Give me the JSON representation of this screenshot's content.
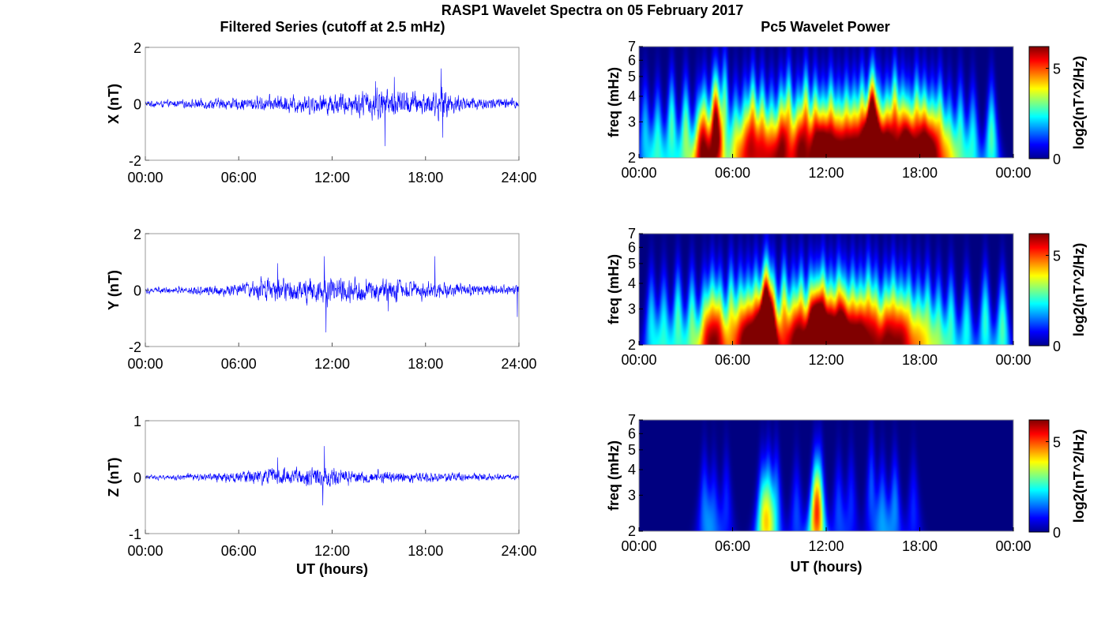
{
  "figure": {
    "title": "RASP1 Wavelet Spectra on 05 February 2017",
    "left_title": "Filtered Series (cutoff at 2.5 mHz)",
    "right_title": "Pc5 Wavelet Power",
    "bottom_xlabel": "UT (hours)"
  },
  "colors": {
    "series_line": "#0000ff",
    "colormap": "jet",
    "spectrogram_background": "#00008f"
  },
  "chart_data": [
    {
      "type": "line",
      "name": "filtered-x",
      "ylabel": "X (nT)",
      "xlabel": "",
      "xlim": [
        0,
        24
      ],
      "ylim": [
        -2,
        2
      ],
      "xticks": [
        0,
        6,
        12,
        18,
        24
      ],
      "xtick_labels": [
        "00:00",
        "06:00",
        "12:00",
        "18:00",
        "24:00"
      ],
      "yticks": [
        -2,
        0,
        2
      ],
      "ytick_labels": [
        "-2",
        "0",
        "2"
      ],
      "envelope_hours": [
        0,
        2,
        4,
        6,
        8,
        10,
        12,
        13,
        14,
        15,
        16,
        18,
        19,
        20,
        22,
        24
      ],
      "envelope_nT": [
        0.18,
        0.2,
        0.3,
        0.35,
        0.45,
        0.55,
        0.6,
        0.65,
        0.75,
        0.95,
        0.8,
        0.65,
        0.9,
        0.5,
        0.35,
        0.3
      ],
      "peaks": [
        [
          15.4,
          -1.5
        ],
        [
          16.0,
          0.95
        ],
        [
          19.0,
          1.25
        ],
        [
          19.1,
          -1.2
        ],
        [
          14.8,
          0.8
        ]
      ]
    },
    {
      "type": "line",
      "name": "filtered-y",
      "ylabel": "Y (nT)",
      "xlabel": "",
      "xlim": [
        0,
        24
      ],
      "ylim": [
        -2,
        2
      ],
      "xticks": [
        0,
        6,
        12,
        18,
        24
      ],
      "xtick_labels": [
        "00:00",
        "06:00",
        "12:00",
        "18:00",
        "24:00"
      ],
      "yticks": [
        -2,
        0,
        2
      ],
      "ytick_labels": [
        "-2",
        "0",
        "2"
      ],
      "envelope_hours": [
        0,
        2,
        4,
        6,
        8,
        9,
        10,
        11,
        12,
        13,
        14,
        16,
        18,
        19,
        20,
        22,
        24
      ],
      "envelope_nT": [
        0.18,
        0.22,
        0.3,
        0.35,
        0.7,
        0.75,
        0.6,
        0.85,
        0.8,
        0.7,
        0.65,
        0.6,
        0.55,
        0.5,
        0.35,
        0.3,
        0.3
      ],
      "peaks": [
        [
          11.6,
          -1.5
        ],
        [
          11.5,
          1.2
        ],
        [
          8.5,
          0.95
        ],
        [
          18.6,
          1.2
        ],
        [
          15.6,
          -0.75
        ],
        [
          23.9,
          -0.95
        ]
      ]
    },
    {
      "type": "line",
      "name": "filtered-z",
      "ylabel": "Z (nT)",
      "xlabel": "UT (hours)",
      "xlim": [
        0,
        24
      ],
      "ylim": [
        -1,
        1
      ],
      "xticks": [
        0,
        6,
        12,
        18,
        24
      ],
      "xtick_labels": [
        "00:00",
        "06:00",
        "12:00",
        "18:00",
        "24:00"
      ],
      "yticks": [
        -1,
        0,
        1
      ],
      "ytick_labels": [
        "-1",
        "0",
        "1"
      ],
      "envelope_hours": [
        0,
        2,
        4,
        6,
        8,
        10,
        11,
        12,
        14,
        16,
        18,
        20,
        22,
        24
      ],
      "envelope_nT": [
        0.06,
        0.08,
        0.12,
        0.15,
        0.25,
        0.25,
        0.3,
        0.28,
        0.2,
        0.18,
        0.15,
        0.12,
        0.1,
        0.08
      ],
      "peaks": [
        [
          11.5,
          0.55
        ],
        [
          11.4,
          -0.5
        ],
        [
          8.5,
          0.35
        ],
        [
          24.0,
          0.3
        ]
      ]
    },
    {
      "type": "heatmap",
      "name": "wavelet-x",
      "ylabel": "freq (mHz)",
      "xlabel": "",
      "xlim": [
        0,
        24
      ],
      "ylim": [
        2,
        7
      ],
      "y_scale": "log",
      "xticks": [
        0,
        6,
        12,
        18,
        24
      ],
      "xtick_labels": [
        "00:00",
        "06:00",
        "12:00",
        "18:00",
        "00:00"
      ],
      "yticks": [
        2,
        3,
        4,
        5,
        6,
        7
      ],
      "ytick_labels": [
        "2",
        "3",
        "4",
        "5",
        "6",
        "7"
      ],
      "colorbar_label": "log2(nT^2/Hz)",
      "colorbar_range": [
        0,
        6.2
      ],
      "colorbar_ticks": [
        0,
        5
      ],
      "blobs": [
        [
          0.4,
          2.6,
          2.0
        ],
        [
          1.2,
          2.4,
          2.5
        ],
        [
          2.1,
          2.8,
          2.8
        ],
        [
          3.0,
          2.6,
          3.2
        ],
        [
          3.8,
          2.3,
          3.0
        ],
        [
          4.2,
          2.5,
          4.3
        ],
        [
          4.8,
          2.9,
          3.2
        ],
        [
          5.0,
          2.8,
          4.0
        ],
        [
          5.5,
          3.5,
          3.0
        ],
        [
          6.2,
          2.4,
          3.2
        ],
        [
          6.8,
          2.5,
          3.5
        ],
        [
          7.3,
          2.8,
          4.5
        ],
        [
          7.9,
          2.6,
          4.3
        ],
        [
          8.5,
          2.4,
          3.8
        ],
        [
          9.1,
          2.5,
          4.6
        ],
        [
          9.6,
          3.0,
          4.0
        ],
        [
          10.2,
          2.4,
          4.2
        ],
        [
          10.7,
          2.9,
          4.6
        ],
        [
          11.3,
          2.6,
          4.8
        ],
        [
          11.8,
          2.3,
          4.8
        ],
        [
          12.3,
          2.7,
          4.5
        ],
        [
          12.8,
          2.4,
          4.0
        ],
        [
          13.3,
          2.6,
          4.2
        ],
        [
          13.8,
          2.5,
          4.2
        ],
        [
          14.3,
          2.8,
          4.4
        ],
        [
          14.8,
          2.3,
          5.6
        ],
        [
          15.0,
          3.0,
          5.2
        ],
        [
          15.4,
          2.5,
          4.0
        ],
        [
          15.9,
          2.4,
          4.8
        ],
        [
          16.4,
          3.0,
          4.5
        ],
        [
          16.9,
          2.6,
          4.0
        ],
        [
          17.3,
          2.3,
          4.3
        ],
        [
          17.8,
          2.8,
          4.2
        ],
        [
          18.3,
          2.5,
          4.8
        ],
        [
          18.8,
          2.4,
          4.0
        ],
        [
          19.3,
          2.7,
          3.6
        ],
        [
          19.9,
          2.3,
          3.0
        ],
        [
          20.6,
          2.6,
          2.6
        ],
        [
          21.4,
          2.4,
          2.4
        ],
        [
          22.6,
          2.5,
          2.8
        ]
      ]
    },
    {
      "type": "heatmap",
      "name": "wavelet-y",
      "ylabel": "freq (mHz)",
      "xlabel": "",
      "xlim": [
        0,
        24
      ],
      "ylim": [
        2,
        7
      ],
      "y_scale": "log",
      "xticks": [
        0,
        6,
        12,
        18,
        24
      ],
      "xtick_labels": [
        "00:00",
        "06:00",
        "12:00",
        "18:00",
        "00:00"
      ],
      "yticks": [
        2,
        3,
        4,
        5,
        6,
        7
      ],
      "ytick_labels": [
        "2",
        "3",
        "4",
        "5",
        "6",
        "7"
      ],
      "colorbar_label": "log2(nT^2/Hz)",
      "colorbar_range": [
        0,
        6.2
      ],
      "colorbar_ticks": [
        0,
        5
      ],
      "blobs": [
        [
          0.8,
          2.5,
          2.2
        ],
        [
          1.6,
          2.4,
          2.4
        ],
        [
          2.5,
          2.6,
          2.8
        ],
        [
          3.4,
          2.5,
          3.0
        ],
        [
          4.2,
          2.3,
          3.6
        ],
        [
          4.7,
          2.6,
          3.8
        ],
        [
          5.2,
          2.4,
          4.0
        ],
        [
          5.9,
          2.7,
          3.6
        ],
        [
          6.5,
          2.5,
          3.8
        ],
        [
          7.0,
          2.4,
          4.2
        ],
        [
          7.5,
          2.6,
          4.5
        ],
        [
          8.0,
          2.3,
          5.6
        ],
        [
          8.2,
          2.9,
          5.0
        ],
        [
          8.6,
          2.5,
          4.8
        ],
        [
          9.3,
          2.7,
          4.2
        ],
        [
          9.9,
          2.4,
          4.0
        ],
        [
          10.4,
          2.6,
          4.4
        ],
        [
          11.0,
          2.5,
          4.8
        ],
        [
          11.4,
          2.3,
          5.8
        ],
        [
          11.8,
          2.7,
          5.2
        ],
        [
          12.3,
          2.4,
          5.0
        ],
        [
          12.8,
          2.7,
          4.6
        ],
        [
          13.2,
          2.4,
          4.4
        ],
        [
          13.7,
          2.6,
          4.2
        ],
        [
          14.2,
          2.4,
          4.4
        ],
        [
          14.7,
          2.8,
          4.0
        ],
        [
          15.2,
          2.5,
          4.0
        ],
        [
          15.8,
          2.4,
          4.2
        ],
        [
          16.3,
          2.7,
          3.8
        ],
        [
          16.8,
          2.4,
          3.8
        ],
        [
          17.3,
          2.6,
          3.4
        ],
        [
          17.9,
          2.4,
          3.2
        ],
        [
          18.5,
          2.6,
          3.0
        ],
        [
          19.2,
          2.4,
          2.8
        ],
        [
          20.0,
          2.5,
          2.6
        ],
        [
          21.0,
          2.4,
          2.4
        ],
        [
          22.2,
          2.6,
          2.6
        ],
        [
          23.3,
          2.4,
          2.8
        ]
      ]
    },
    {
      "type": "heatmap",
      "name": "wavelet-z",
      "ylabel": "freq (mHz)",
      "xlabel": "UT (hours)",
      "xlim": [
        0,
        24
      ],
      "ylim": [
        2,
        7
      ],
      "y_scale": "log",
      "xticks": [
        0,
        6,
        12,
        18,
        24
      ],
      "xtick_labels": [
        "00:00",
        "06:00",
        "12:00",
        "18:00",
        "00:00"
      ],
      "yticks": [
        2,
        3,
        4,
        5,
        6,
        7
      ],
      "ytick_labels": [
        "2",
        "3",
        "4",
        "5",
        "6",
        "7"
      ],
      "colorbar_label": "log2(nT^2/Hz)",
      "colorbar_range": [
        0,
        6.2
      ],
      "colorbar_ticks": [
        0,
        5
      ],
      "blobs": [
        [
          4.2,
          2.6,
          1.4
        ],
        [
          4.8,
          2.4,
          1.2
        ],
        [
          5.6,
          2.7,
          1.0
        ],
        [
          7.9,
          2.4,
          2.4
        ],
        [
          8.3,
          2.6,
          2.6
        ],
        [
          8.8,
          2.8,
          1.6
        ],
        [
          10.1,
          2.4,
          1.2
        ],
        [
          11.3,
          2.5,
          3.6
        ],
        [
          11.6,
          2.8,
          2.4
        ],
        [
          12.8,
          2.5,
          1.2
        ],
        [
          13.6,
          2.7,
          1.0
        ],
        [
          14.9,
          3.2,
          1.3
        ],
        [
          15.6,
          2.4,
          1.6
        ],
        [
          16.4,
          2.6,
          1.6
        ],
        [
          17.6,
          2.5,
          1.0
        ]
      ]
    }
  ]
}
